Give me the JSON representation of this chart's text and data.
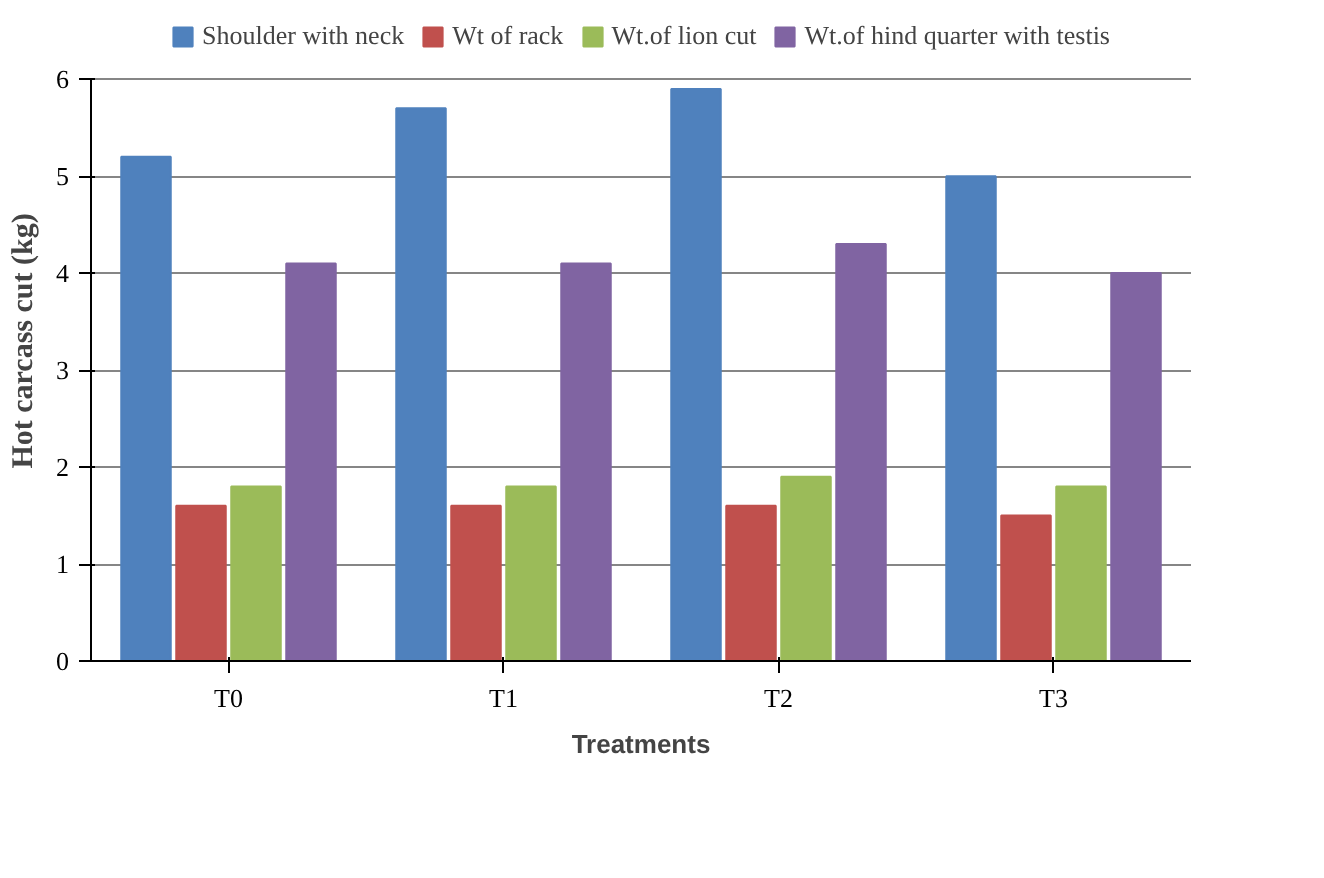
{
  "chart_data": {
    "type": "bar",
    "xlabel": "Treatments",
    "ylabel": "Hot carcass cut (kg)",
    "categories": [
      "T0",
      "T1",
      "T2",
      "T3"
    ],
    "series": [
      {
        "name": "Shoulder with neck",
        "color": "#4f81bd",
        "values": [
          5.2,
          5.7,
          5.9,
          5.0
        ]
      },
      {
        "name": "Wt of rack",
        "color": "#c0504d",
        "values": [
          1.6,
          1.6,
          1.6,
          1.5
        ]
      },
      {
        "name": "Wt.of lion cut",
        "color": "#9bbb59",
        "values": [
          1.8,
          1.8,
          1.9,
          1.8
        ]
      },
      {
        "name": "Wt.of hind quarter with testis",
        "color": "#8064a2",
        "values": [
          4.1,
          4.1,
          4.3,
          4.0
        ]
      }
    ],
    "ylim": [
      0,
      6
    ],
    "yticks": [
      0,
      1,
      2,
      3,
      4,
      5,
      6
    ],
    "grid": "y",
    "legend": "top"
  }
}
